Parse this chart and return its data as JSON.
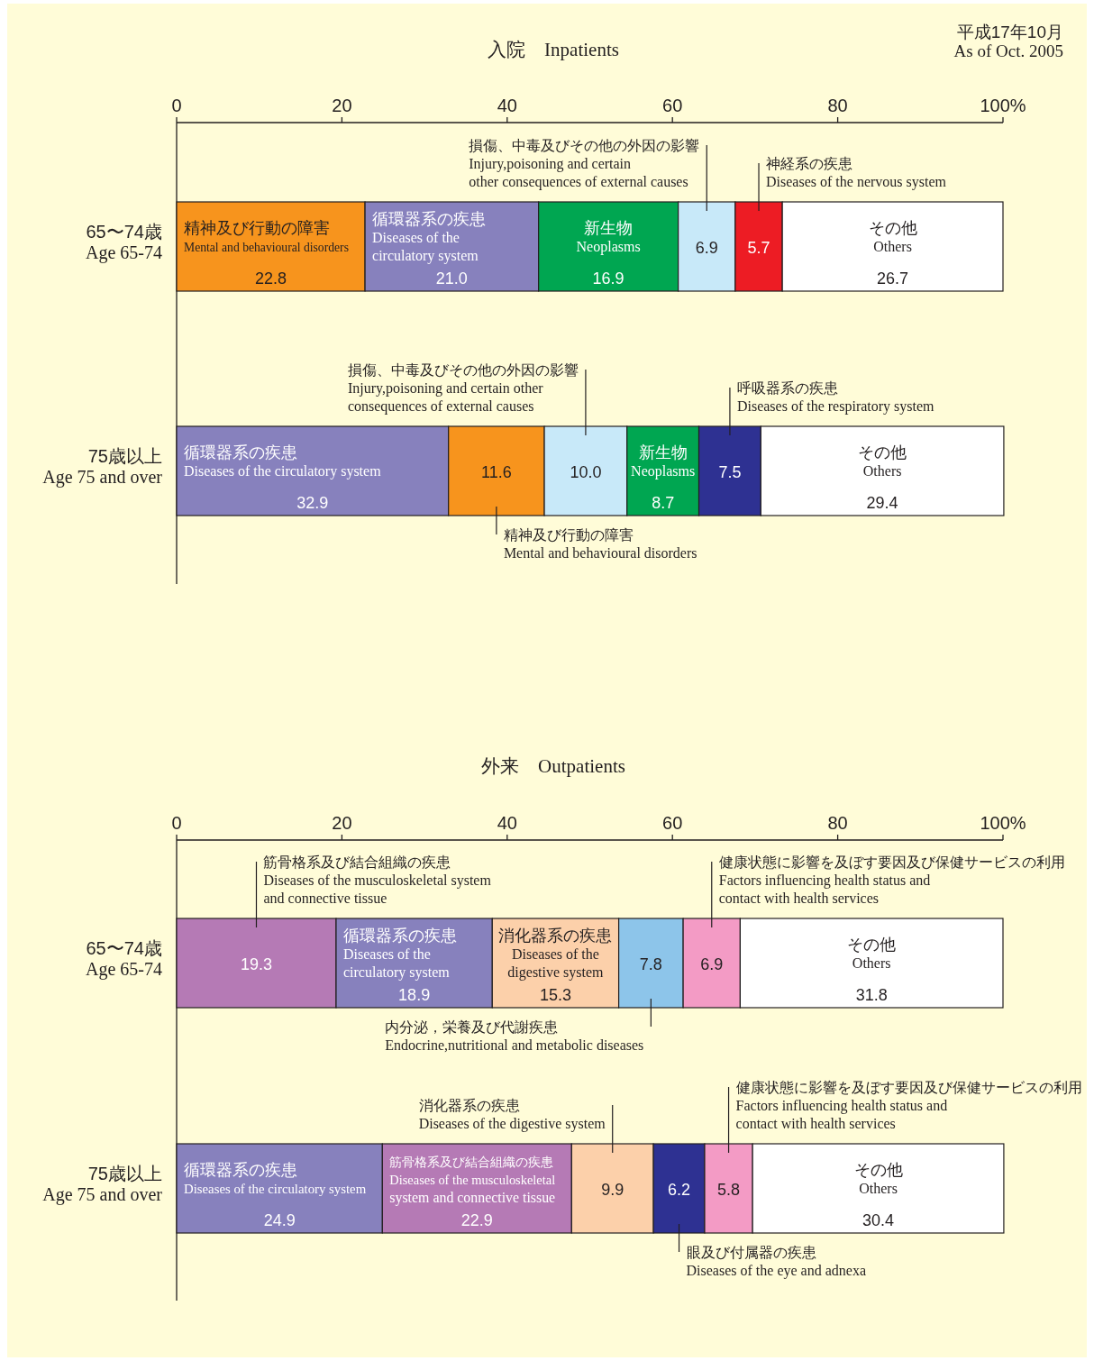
{
  "chart_data": [
    {
      "type": "bar",
      "orientation": "horizontal",
      "stacked": true,
      "title": "入院　Inpatients",
      "annotations": [
        "平成17年10月\nAs of Oct. 2005"
      ],
      "categories": [
        "65〜74歳\nAge 65-74"
      ],
      "xlim": [
        0,
        100
      ],
      "xticks": [
        0,
        20,
        40,
        60,
        80,
        {
          "value": 100,
          "label": "100%"
        }
      ],
      "series": [
        {
          "name": "精神及び行動の障害\nMental and behavioural disorders",
          "color": "#f7941d",
          "values": [
            22.8
          ],
          "value_labels": [
            "22.8"
          ]
        },
        {
          "name": "循環器系の疾患\nDiseases of the\ncirculatory system",
          "color": "#8781bd",
          "values": [
            21.0
          ],
          "value_labels": [
            "21.0"
          ]
        },
        {
          "name": "新生物\nNeoplasms",
          "color": "#00a651",
          "values": [
            16.9
          ],
          "value_labels": [
            "16.9"
          ]
        },
        {
          "name": "損傷、中毒及びその他の外因の影響\nInjury,poisoning and certain\nother consequences of external causes",
          "color": "#c8e9f9",
          "values": [
            6.9
          ],
          "value_labels": [
            "6.9"
          ]
        },
        {
          "name": "神経系の疾患\nDiseases of the nervous system",
          "color": "#ed1c24",
          "values": [
            5.7
          ],
          "value_labels": [
            "5.7"
          ]
        },
        {
          "name": "その他\nOthers",
          "color": "#ffffff",
          "values": [
            26.7
          ],
          "value_labels": [
            "26.7"
          ]
        }
      ]
    },
    {
      "type": "bar",
      "orientation": "horizontal",
      "stacked": true,
      "tick_labels": "y",
      "categories": [
        "75歳以上\nAge 75 and over"
      ],
      "xlim": [
        0,
        100
      ],
      "series": [
        {
          "name": "循環器系の疾患\nDiseases of the circulatory system",
          "color": "#8781bd",
          "values": [
            32.9
          ],
          "value_labels": [
            "32.9"
          ]
        },
        {
          "name": "精神及び行動の障害\nMental and behavioural disorders",
          "color": "#f7941d",
          "values": [
            11.6
          ],
          "value_labels": [
            "11.6"
          ]
        },
        {
          "name": "損傷、中毒及びその他の外因の影響\nInjury,poisoning and certain other\nconsequences of external causes",
          "color": "#c8e9f9",
          "values": [
            10.0
          ],
          "value_labels": [
            "10.0"
          ]
        },
        {
          "name": "新生物\nNeoplasms",
          "color": "#00a651",
          "values": [
            8.7
          ],
          "value_labels": [
            "8.7"
          ]
        },
        {
          "name": "呼吸器系の疾患\nDiseases of the respiratory system",
          "color": "#2e3192",
          "values": [
            7.5
          ],
          "value_labels": [
            "7.5"
          ]
        },
        {
          "name": "その他\nOthers",
          "color": "#ffffff",
          "values": [
            29.4
          ],
          "value_labels": [
            "29.4"
          ]
        }
      ]
    },
    {
      "type": "bar",
      "orientation": "horizontal",
      "stacked": true,
      "title": "外来　Outpatients",
      "categories": [
        "65〜74歳\nAge 65-74"
      ],
      "xlim": [
        0,
        100
      ],
      "xticks": [
        0,
        20,
        40,
        60,
        80,
        {
          "value": 100,
          "label": "100%"
        }
      ],
      "series": [
        {
          "name": "筋骨格系及び結合組織の疾患\nDiseases of the musculoskeletal system\nand connective tissue",
          "color": "#b57ab5",
          "values": [
            19.3
          ],
          "value_labels": [
            "19.3"
          ]
        },
        {
          "name": "循環器系の疾患\nDiseases of the\ncirculatory system",
          "color": "#8781bd",
          "values": [
            18.9
          ],
          "value_labels": [
            "18.9"
          ]
        },
        {
          "name": "消化器系の疾患\nDiseases of the\ndigestive system",
          "color": "#fcd0aa",
          "values": [
            15.3
          ],
          "value_labels": [
            "15.3"
          ]
        },
        {
          "name": "内分泌，栄養及び代謝疾患\nEndocrine,nutritional and metabolic diseases",
          "color": "#8dc5ea",
          "values": [
            7.8
          ],
          "value_labels": [
            "7.8"
          ]
        },
        {
          "name": "健康状態に影響を及ぼす要因及び保健サービスの利用\nFactors influencing health status and\ncontact with health services",
          "color": "#f39bc5",
          "values": [
            6.9
          ],
          "value_labels": [
            "6.9"
          ]
        },
        {
          "name": "その他\nOthers",
          "color": "#ffffff",
          "values": [
            31.8
          ],
          "value_labels": [
            "31.8"
          ]
        }
      ]
    },
    {
      "type": "bar",
      "orientation": "horizontal",
      "stacked": true,
      "tick_labels": "y",
      "categories": [
        "75歳以上\nAge 75 and over"
      ],
      "xlim": [
        0,
        100
      ],
      "series": [
        {
          "name": "循環器系の疾患\nDiseases of the circulatory system",
          "color": "#8781bd",
          "values": [
            24.9
          ],
          "value_labels": [
            "24.9"
          ]
        },
        {
          "name": "筋骨格系及び結合組織の疾患\nDiseases of the musculoskeletal\nsystem and connective tissue",
          "color": "#b57ab5",
          "values": [
            22.9
          ],
          "value_labels": [
            "22.9"
          ]
        },
        {
          "name": "消化器系の疾患\nDiseases of the digestive system",
          "color": "#fcd0aa",
          "values": [
            9.9
          ],
          "value_labels": [
            "9.9"
          ]
        },
        {
          "name": "眼及び付属器の疾患\nDiseases of the eye and adnexa",
          "color": "#2e3192",
          "values": [
            6.2
          ],
          "value_labels": [
            "6.2"
          ]
        },
        {
          "name": "健康状態に影響を及ぼす要因及び保健サービスの利用\nFactors influencing health status and\ncontact with health services",
          "color": "#f39bc5",
          "values": [
            5.8
          ],
          "value_labels": [
            "5.8"
          ]
        },
        {
          "name": "その他\nOthers",
          "color": "#ffffff",
          "values": [
            30.4
          ],
          "value_labels": [
            "30.4"
          ]
        }
      ]
    }
  ]
}
